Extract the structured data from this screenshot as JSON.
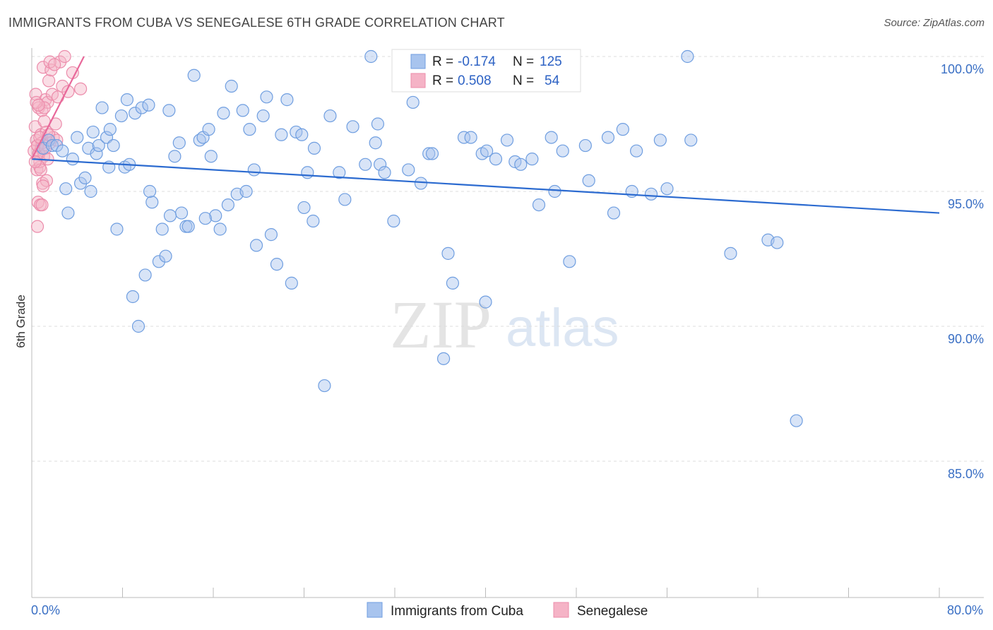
{
  "title": "IMMIGRANTS FROM CUBA VS SENEGALESE 6TH GRADE CORRELATION CHART",
  "source": "Source: ZipAtlas.com",
  "watermark": {
    "zip": "ZIP",
    "atlas": "atlas"
  },
  "colors": {
    "blue_fill": "#a8c4ee",
    "blue_stroke": "#6f9ee0",
    "blue_line": "#2c6bd0",
    "pink_fill": "#f5b3c6",
    "pink_stroke": "#ec8cab",
    "pink_line": "#e8689a",
    "axis_text": "#3a6fc4",
    "grid": "#dddddd"
  },
  "legend": {
    "rows": [
      {
        "r_label": "R = ",
        "r_value": "-0.174",
        "n_label": "N = ",
        "n_value": "125"
      },
      {
        "r_label": "R = ",
        "r_value": "0.508",
        "n_label": "N = ",
        "n_value": "54"
      }
    ]
  },
  "chart_data": {
    "type": "scatter",
    "title": "IMMIGRANTS FROM CUBA VS SENEGALESE 6TH GRADE CORRELATION CHART",
    "xlabel": "",
    "ylabel": "6th Grade",
    "xlim": [
      0,
      80
    ],
    "ylim": [
      80.2,
      100.5
    ],
    "x_tick_labels": [
      "0.0%",
      "80.0%"
    ],
    "y_ticks": [
      100,
      95,
      90,
      85
    ],
    "y_tick_labels": [
      "100.0%",
      "95.0%",
      "90.0%",
      "85.0%"
    ],
    "grid": true,
    "legend_position": "top-center",
    "series": [
      {
        "name": "Immigrants from Cuba",
        "color": "blue",
        "trend": {
          "x": [
            0,
            80
          ],
          "y": [
            96.2,
            94.2
          ]
        },
        "points": [
          [
            1.0,
            96.6
          ],
          [
            1.5,
            96.9
          ],
          [
            1.8,
            96.7
          ],
          [
            2.2,
            96.7
          ],
          [
            3.0,
            95.1
          ],
          [
            3.2,
            94.2
          ],
          [
            3.6,
            96.2
          ],
          [
            4.0,
            97.0
          ],
          [
            4.3,
            95.3
          ],
          [
            4.7,
            95.5
          ],
          [
            5.0,
            96.6
          ],
          [
            5.2,
            95.0
          ],
          [
            5.4,
            97.2
          ],
          [
            5.7,
            96.4
          ],
          [
            5.9,
            96.7
          ],
          [
            6.2,
            98.1
          ],
          [
            6.6,
            97.0
          ],
          [
            6.9,
            97.3
          ],
          [
            7.2,
            96.7
          ],
          [
            7.5,
            93.6
          ],
          [
            7.9,
            97.8
          ],
          [
            8.2,
            95.9
          ],
          [
            8.4,
            98.4
          ],
          [
            8.6,
            96.0
          ],
          [
            8.9,
            91.1
          ],
          [
            9.1,
            97.9
          ],
          [
            9.4,
            90.0
          ],
          [
            9.7,
            98.1
          ],
          [
            10.0,
            91.9
          ],
          [
            10.3,
            98.2
          ],
          [
            10.6,
            94.6
          ],
          [
            10.4,
            95.0
          ],
          [
            11.2,
            92.4
          ],
          [
            11.5,
            93.6
          ],
          [
            11.8,
            92.6
          ],
          [
            12.1,
            98.0
          ],
          [
            12.6,
            96.3
          ],
          [
            13.0,
            96.8
          ],
          [
            13.2,
            94.2
          ],
          [
            13.6,
            93.7
          ],
          [
            13.8,
            93.7
          ],
          [
            14.3,
            99.3
          ],
          [
            14.8,
            96.9
          ],
          [
            15.1,
            97.0
          ],
          [
            15.6,
            97.3
          ],
          [
            15.8,
            96.3
          ],
          [
            16.2,
            94.1
          ],
          [
            16.6,
            93.6
          ],
          [
            16.9,
            97.9
          ],
          [
            17.3,
            94.5
          ],
          [
            17.6,
            98.9
          ],
          [
            18.1,
            94.9
          ],
          [
            18.6,
            98.0
          ],
          [
            18.9,
            95.0
          ],
          [
            19.2,
            97.3
          ],
          [
            19.6,
            95.8
          ],
          [
            19.8,
            93.0
          ],
          [
            20.4,
            97.8
          ],
          [
            20.7,
            98.5
          ],
          [
            21.1,
            93.4
          ],
          [
            21.6,
            92.3
          ],
          [
            22.0,
            97.1
          ],
          [
            22.5,
            98.4
          ],
          [
            22.9,
            91.6
          ],
          [
            23.3,
            97.2
          ],
          [
            23.8,
            97.1
          ],
          [
            24.0,
            94.4
          ],
          [
            24.3,
            95.7
          ],
          [
            24.8,
            93.9
          ],
          [
            25.8,
            87.8
          ],
          [
            26.3,
            97.8
          ],
          [
            27.1,
            95.7
          ],
          [
            27.6,
            94.7
          ],
          [
            28.3,
            97.4
          ],
          [
            29.4,
            96.0
          ],
          [
            29.9,
            100.0
          ],
          [
            30.3,
            96.8
          ],
          [
            30.5,
            97.5
          ],
          [
            30.7,
            96.0
          ],
          [
            31.1,
            95.7
          ],
          [
            31.9,
            93.9
          ],
          [
            33.6,
            98.3
          ],
          [
            34.3,
            95.3
          ],
          [
            35.0,
            96.4
          ],
          [
            35.3,
            96.4
          ],
          [
            36.3,
            88.8
          ],
          [
            36.7,
            92.7
          ],
          [
            37.1,
            91.6
          ],
          [
            38.1,
            97.0
          ],
          [
            38.7,
            97.0
          ],
          [
            39.7,
            96.4
          ],
          [
            40.0,
            90.9
          ],
          [
            40.1,
            96.5
          ],
          [
            40.9,
            96.2
          ],
          [
            41.9,
            96.9
          ],
          [
            42.6,
            96.1
          ],
          [
            43.1,
            96.0
          ],
          [
            44.1,
            96.2
          ],
          [
            45.8,
            97.0
          ],
          [
            46.8,
            96.5
          ],
          [
            47.4,
            92.4
          ],
          [
            48.8,
            96.7
          ],
          [
            49.1,
            95.4
          ],
          [
            50.8,
            97.0
          ],
          [
            51.3,
            94.2
          ],
          [
            52.9,
            95.0
          ],
          [
            53.3,
            96.5
          ],
          [
            54.6,
            94.9
          ],
          [
            55.4,
            96.9
          ],
          [
            57.8,
            100.0
          ],
          [
            58.1,
            96.9
          ],
          [
            61.6,
            92.7
          ],
          [
            64.9,
            93.2
          ],
          [
            65.7,
            93.1
          ],
          [
            67.4,
            86.5
          ],
          [
            2.7,
            96.5
          ],
          [
            6.8,
            95.9
          ],
          [
            12.2,
            94.1
          ],
          [
            15.3,
            94.0
          ],
          [
            24.9,
            96.6
          ],
          [
            33.2,
            95.8
          ],
          [
            46.1,
            95.0
          ],
          [
            52.1,
            97.3
          ],
          [
            56.0,
            95.1
          ],
          [
            44.7,
            94.5
          ]
        ]
      },
      {
        "name": "Senegalese",
        "color": "pink",
        "trend": {
          "x": [
            0,
            4.6
          ],
          "y": [
            96.2,
            100.0
          ]
        },
        "points": [
          [
            0.2,
            96.5
          ],
          [
            0.3,
            97.4
          ],
          [
            0.35,
            98.6
          ],
          [
            0.4,
            96.9
          ],
          [
            0.45,
            95.8
          ],
          [
            0.5,
            96.7
          ],
          [
            0.55,
            94.6
          ],
          [
            0.6,
            98.1
          ],
          [
            0.65,
            96.4
          ],
          [
            0.7,
            95.9
          ],
          [
            0.75,
            94.5
          ],
          [
            0.8,
            97.1
          ],
          [
            0.85,
            96.6
          ],
          [
            0.9,
            98.0
          ],
          [
            0.95,
            95.3
          ],
          [
            1.0,
            99.6
          ],
          [
            1.05,
            96.3
          ],
          [
            1.1,
            97.6
          ],
          [
            1.2,
            98.4
          ],
          [
            1.3,
            95.4
          ],
          [
            1.4,
            98.3
          ],
          [
            1.5,
            99.1
          ],
          [
            1.6,
            96.8
          ],
          [
            1.7,
            99.5
          ],
          [
            1.8,
            98.6
          ],
          [
            1.9,
            97.0
          ],
          [
            2.1,
            97.5
          ],
          [
            2.3,
            98.5
          ],
          [
            2.5,
            99.8
          ],
          [
            2.7,
            98.9
          ],
          [
            2.9,
            100.0
          ],
          [
            3.2,
            98.7
          ],
          [
            3.6,
            99.4
          ],
          [
            4.3,
            98.8
          ],
          [
            0.5,
            93.7
          ],
          [
            0.7,
            96.1
          ],
          [
            0.9,
            96.8
          ],
          [
            1.1,
            98.1
          ],
          [
            1.3,
            97.2
          ],
          [
            0.4,
            98.3
          ],
          [
            0.6,
            96.4
          ],
          [
            0.8,
            95.8
          ],
          [
            1.0,
            95.2
          ],
          [
            1.6,
            99.8
          ],
          [
            2.0,
            99.7
          ],
          [
            0.3,
            96.1
          ],
          [
            0.5,
            96.7
          ],
          [
            0.7,
            97.0
          ],
          [
            1.2,
            96.6
          ],
          [
            1.5,
            97.1
          ],
          [
            0.6,
            98.2
          ],
          [
            0.9,
            94.5
          ],
          [
            1.4,
            96.2
          ],
          [
            2.2,
            96.9
          ]
        ]
      }
    ]
  },
  "bottom_legend": [
    {
      "label": "Immigrants from Cuba",
      "color": "blue"
    },
    {
      "label": "Senegalese",
      "color": "pink"
    }
  ]
}
